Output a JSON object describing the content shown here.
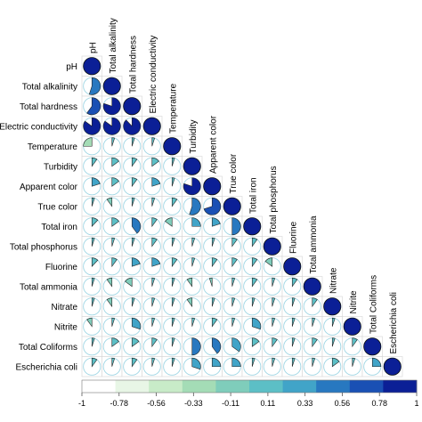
{
  "chart_data": {
    "type": "heatmap",
    "subtype": "correlogram-pie",
    "title": "",
    "variables": [
      "pH",
      "Total alkalinity",
      "Total hardness",
      "Electric conductivity",
      "Temperature",
      "Turbidity",
      "Apparent color",
      "True color",
      "Total iron",
      "Total phosphorus",
      "Fluorine",
      "Total ammonia",
      "Nitrate",
      "Nitrite",
      "Total Coliforms",
      "Escherichia coli"
    ],
    "row_labels": [
      "pH",
      "Total alkalinity",
      "Total hardness",
      "Electric conductivity",
      "Temperature",
      "Turbidity",
      "Apparent color",
      "True color",
      "Total iron",
      "Total phosphorus",
      "Fluorine",
      "Total ammonia",
      "Nitrate",
      "Nitrite",
      "Total Coliforms",
      "Escherichia coli"
    ],
    "column_labels": [
      "pH",
      "Total alkalinity",
      "Total hardness",
      "Electric conductivity",
      "Temperature",
      "Turbidity",
      "Apparent color",
      "True color",
      "Total iron",
      "Total phosphorus",
      "Fluorine",
      "Total ammonia",
      "Nitrate",
      "Nitrite",
      "Total Coliforms",
      "Escherichia coli"
    ],
    "matrix_lower": [
      [
        1
      ],
      [
        0.55,
        1
      ],
      [
        0.6,
        0.8,
        1
      ],
      [
        0.85,
        0.85,
        0.88,
        1
      ],
      [
        -0.25,
        0.05,
        0.05,
        0.05,
        1
      ],
      [
        0.1,
        0.15,
        0.1,
        0.15,
        0.05,
        1
      ],
      [
        0.2,
        0.15,
        0.1,
        0.2,
        0.05,
        0.8,
        1
      ],
      [
        0.05,
        -0.1,
        0.05,
        0.05,
        0.1,
        0.55,
        0.7,
        1
      ],
      [
        0.12,
        0.15,
        0.4,
        0.1,
        -0.15,
        0.25,
        0.2,
        0.5,
        1
      ],
      [
        0.05,
        0.05,
        0.05,
        0.1,
        0.05,
        0.05,
        0.05,
        0.1,
        0.1,
        1
      ],
      [
        0.12,
        0.1,
        0.2,
        0.2,
        0.1,
        0.05,
        0.1,
        0.1,
        0.1,
        -0.15,
        1
      ],
      [
        0.05,
        -0.1,
        -0.15,
        0.05,
        0.05,
        -0.1,
        -0.05,
        0.05,
        0.1,
        0.05,
        0.1,
        1
      ],
      [
        0.05,
        -0.1,
        0.05,
        0.05,
        0.05,
        -0.1,
        0.05,
        0.05,
        0.05,
        0.05,
        0.05,
        0.1,
        1
      ],
      [
        -0.1,
        0.05,
        0.3,
        0.05,
        0.05,
        0.05,
        0.1,
        0.05,
        0.3,
        0.05,
        0.05,
        0.05,
        0.05,
        1
      ],
      [
        0.05,
        0.15,
        0.15,
        0.1,
        0.05,
        0.5,
        0.4,
        0.35,
        0.15,
        0.1,
        0.05,
        0.1,
        0.05,
        0.1,
        1
      ],
      [
        0.1,
        0.05,
        0.1,
        0.05,
        0.05,
        0.3,
        0.25,
        0.25,
        0.05,
        0.05,
        0.05,
        0.05,
        0.15,
        0.05,
        0.25,
        1
      ]
    ],
    "colorbar": {
      "ticks": [
        "-1",
        "-0.78",
        "-0.56",
        "-0.33",
        "-0.11",
        "0.11",
        "0.33",
        "0.56",
        "0.78",
        "1"
      ],
      "colors": [
        "#ffffff",
        "#e8f6e6",
        "#c8ebc8",
        "#a4dcb6",
        "#7fcdbb",
        "#5cbfc6",
        "#41a4c8",
        "#2878c0",
        "#1a50b4",
        "#0b1f96"
      ],
      "placement": "bottom"
    }
  }
}
